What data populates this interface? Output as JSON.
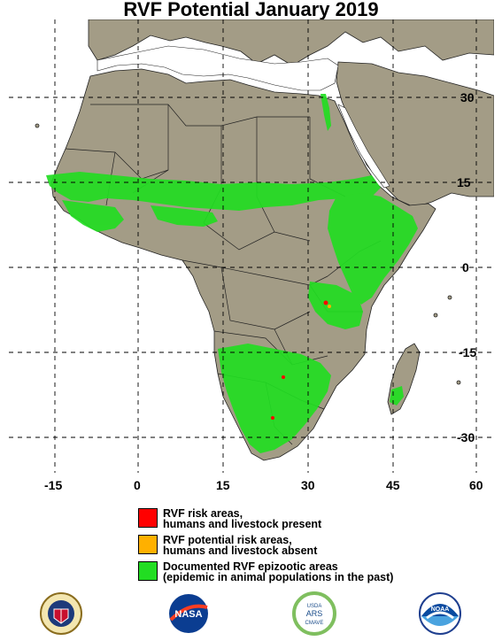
{
  "title": "RVF Potential January 2019",
  "longitude_labels": [
    "-15",
    "0",
    "15",
    "30",
    "45",
    "60"
  ],
  "latitude_labels": [
    "30",
    "15",
    "0",
    "-15",
    "-30"
  ],
  "legend": [
    {
      "line1": "RVF risk areas,",
      "line2": "humans and livestock present",
      "color": "#ff0000"
    },
    {
      "line1": "RVF potential risk areas,",
      "line2": "humans and livestock absent",
      "color": "#ffb000"
    },
    {
      "line1": "Documented RVF epizootic areas",
      "line2": "(epidemic in animal populations in the past)",
      "color": "#22dd22"
    }
  ],
  "logos": [
    {
      "icon": "defense-health-agency-seal-icon",
      "text": "DEFENSE HEALTH AGENCY"
    },
    {
      "icon": "nasa-logo-icon",
      "text": "NASA"
    },
    {
      "icon": "usda-cmave-logo-icon",
      "text": "USDA ARS CMAVE"
    },
    {
      "icon": "noaa-logo-icon",
      "text": "NOAA"
    }
  ],
  "colors": {
    "land": "#a39c86",
    "water": "#ffffff",
    "epizootic": "#22dd22",
    "risk": "#ff0000",
    "potential_risk": "#ffb000"
  }
}
